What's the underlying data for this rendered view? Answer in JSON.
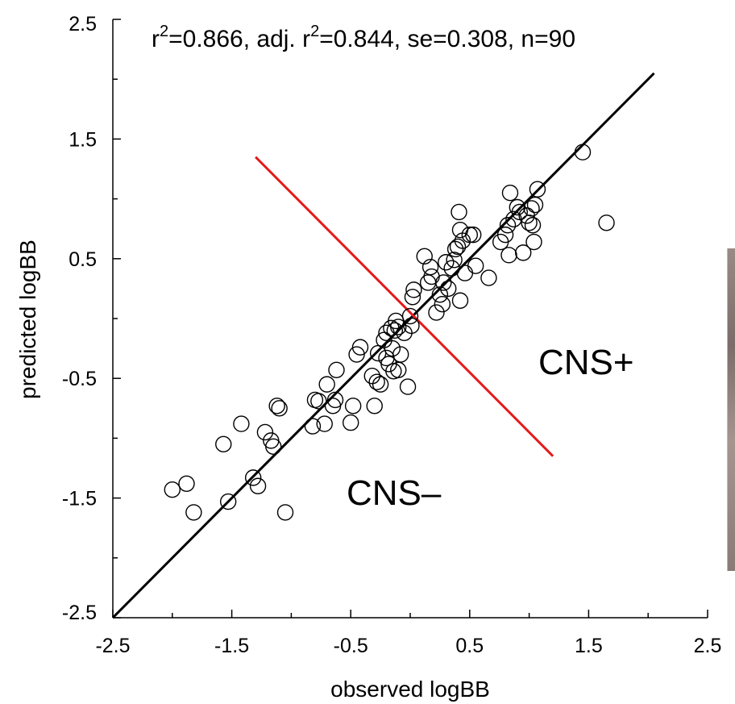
{
  "chart_data": {
    "type": "scatter",
    "xlabel": "observed logBB",
    "ylabel": "predicted logBB",
    "xlim": [
      -2.5,
      2.5
    ],
    "ylim": [
      -2.5,
      2.5
    ],
    "x_ticks": [
      "-2.5",
      "-1.5",
      "-0.5",
      "0.5",
      "1.5",
      "2.5"
    ],
    "y_ticks": [
      "-2.5",
      "-1.5",
      "-0.5",
      "0.5",
      "1.5",
      "2.5"
    ],
    "grid": false,
    "statistics": {
      "r2_prefix": "r",
      "r2_sup": "2",
      "r2_value": "=0.866, adj. r",
      "adj_sup": "2",
      "rest": "=0.844, se=0.308, n=90"
    },
    "regions": [
      {
        "label": "CNS+"
      },
      {
        "label": "CNS–"
      }
    ],
    "fit_line": {
      "x": [
        -2.5,
        2.05
      ],
      "y": [
        -2.5,
        2.05
      ],
      "color": "#000000"
    },
    "separator_line": {
      "x": [
        -1.3,
        1.2
      ],
      "y": [
        1.35,
        -1.15
      ],
      "color": "#e41a1a"
    },
    "points": [
      {
        "x": -2.0,
        "y": -1.43
      },
      {
        "x": -1.88,
        "y": -1.38
      },
      {
        "x": -1.82,
        "y": -1.62
      },
      {
        "x": -1.57,
        "y": -1.05
      },
      {
        "x": -1.53,
        "y": -1.53
      },
      {
        "x": -1.42,
        "y": -0.88
      },
      {
        "x": -1.32,
        "y": -1.33
      },
      {
        "x": -1.28,
        "y": -1.4
      },
      {
        "x": -1.22,
        "y": -0.95
      },
      {
        "x": -1.17,
        "y": -1.02
      },
      {
        "x": -1.15,
        "y": -1.07
      },
      {
        "x": -1.12,
        "y": -0.73
      },
      {
        "x": -1.1,
        "y": -0.75
      },
      {
        "x": -1.05,
        "y": -1.62
      },
      {
        "x": -0.82,
        "y": -0.9
      },
      {
        "x": -0.8,
        "y": -0.68
      },
      {
        "x": -0.77,
        "y": -0.69
      },
      {
        "x": -0.72,
        "y": -0.88
      },
      {
        "x": -0.7,
        "y": -0.55
      },
      {
        "x": -0.65,
        "y": -0.73
      },
      {
        "x": -0.63,
        "y": -0.68
      },
      {
        "x": -0.62,
        "y": -0.43
      },
      {
        "x": -0.5,
        "y": -0.87
      },
      {
        "x": -0.48,
        "y": -0.73
      },
      {
        "x": -0.45,
        "y": -0.3
      },
      {
        "x": -0.42,
        "y": -0.24
      },
      {
        "x": -0.32,
        "y": -0.48
      },
      {
        "x": -0.3,
        "y": -0.73
      },
      {
        "x": -0.28,
        "y": -0.53
      },
      {
        "x": -0.27,
        "y": -0.29
      },
      {
        "x": -0.25,
        "y": -0.55
      },
      {
        "x": -0.2,
        "y": -0.33
      },
      {
        "x": -0.22,
        "y": -0.18
      },
      {
        "x": -0.2,
        "y": -0.12
      },
      {
        "x": -0.18,
        "y": -0.38
      },
      {
        "x": -0.16,
        "y": -0.08
      },
      {
        "x": -0.15,
        "y": -0.25
      },
      {
        "x": -0.14,
        "y": -0.44
      },
      {
        "x": -0.13,
        "y": -0.1
      },
      {
        "x": -0.12,
        "y": -0.02
      },
      {
        "x": -0.1,
        "y": -0.07
      },
      {
        "x": -0.1,
        "y": -0.43
      },
      {
        "x": -0.08,
        "y": -0.3
      },
      {
        "x": -0.05,
        "y": -0.12
      },
      {
        "x": -0.02,
        "y": -0.57
      },
      {
        "x": 0.0,
        "y": 0.02
      },
      {
        "x": 0.01,
        "y": -0.06
      },
      {
        "x": 0.02,
        "y": 0.18
      },
      {
        "x": 0.03,
        "y": 0.24
      },
      {
        "x": 0.12,
        "y": 0.52
      },
      {
        "x": 0.15,
        "y": 0.3
      },
      {
        "x": 0.17,
        "y": 0.43
      },
      {
        "x": 0.18,
        "y": 0.35
      },
      {
        "x": 0.22,
        "y": 0.05
      },
      {
        "x": 0.25,
        "y": 0.2
      },
      {
        "x": 0.27,
        "y": 0.12
      },
      {
        "x": 0.28,
        "y": 0.3
      },
      {
        "x": 0.3,
        "y": 0.47
      },
      {
        "x": 0.32,
        "y": 0.25
      },
      {
        "x": 0.35,
        "y": 0.42
      },
      {
        "x": 0.37,
        "y": 0.49
      },
      {
        "x": 0.38,
        "y": 0.58
      },
      {
        "x": 0.4,
        "y": 0.6
      },
      {
        "x": 0.41,
        "y": 0.89
      },
      {
        "x": 0.42,
        "y": 0.74
      },
      {
        "x": 0.42,
        "y": 0.15
      },
      {
        "x": 0.44,
        "y": 0.65
      },
      {
        "x": 0.46,
        "y": 0.38
      },
      {
        "x": 0.5,
        "y": 0.7
      },
      {
        "x": 0.53,
        "y": 0.7
      },
      {
        "x": 0.55,
        "y": 0.44
      },
      {
        "x": 0.66,
        "y": 0.34
      },
      {
        "x": 0.76,
        "y": 0.64
      },
      {
        "x": 0.8,
        "y": 0.7
      },
      {
        "x": 0.82,
        "y": 0.78
      },
      {
        "x": 0.83,
        "y": 0.53
      },
      {
        "x": 0.84,
        "y": 1.05
      },
      {
        "x": 0.87,
        "y": 0.83
      },
      {
        "x": 0.92,
        "y": 0.89
      },
      {
        "x": 0.95,
        "y": 0.55
      },
      {
        "x": 0.98,
        "y": 0.86
      },
      {
        "x": 1.0,
        "y": 0.8
      },
      {
        "x": 1.02,
        "y": 0.92
      },
      {
        "x": 1.03,
        "y": 0.78
      },
      {
        "x": 1.04,
        "y": 0.64
      },
      {
        "x": 1.05,
        "y": 0.95
      },
      {
        "x": 1.07,
        "y": 1.08
      },
      {
        "x": 1.45,
        "y": 1.39
      },
      {
        "x": 1.65,
        "y": 0.8
      },
      {
        "x": 0.9,
        "y": 0.93
      }
    ]
  }
}
